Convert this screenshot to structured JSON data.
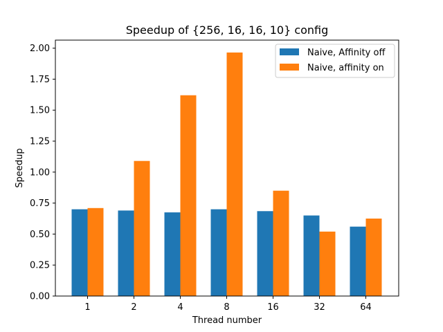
{
  "chart_data": {
    "type": "bar",
    "title": "Speedup of {256, 16, 16, 10} config",
    "xlabel": "Thread number",
    "ylabel": "Speedup",
    "categories": [
      "1",
      "2",
      "4",
      "8",
      "16",
      "32",
      "64"
    ],
    "ylim": [
      0,
      2.065
    ],
    "yticks": [
      "0.00",
      "0.25",
      "0.50",
      "0.75",
      "1.00",
      "1.25",
      "1.50",
      "1.75",
      "2.00"
    ],
    "grid": false,
    "legend_position": "top-right",
    "series": [
      {
        "name": "Naive, Affinity off",
        "color": "#1f77b4",
        "values": [
          0.7,
          0.69,
          0.675,
          0.7,
          0.685,
          0.65,
          0.56
        ]
      },
      {
        "name": "Naive, affinity on",
        "color": "#ff7f0e",
        "values": [
          0.71,
          1.09,
          1.62,
          1.965,
          0.85,
          0.52,
          0.625
        ]
      }
    ]
  }
}
